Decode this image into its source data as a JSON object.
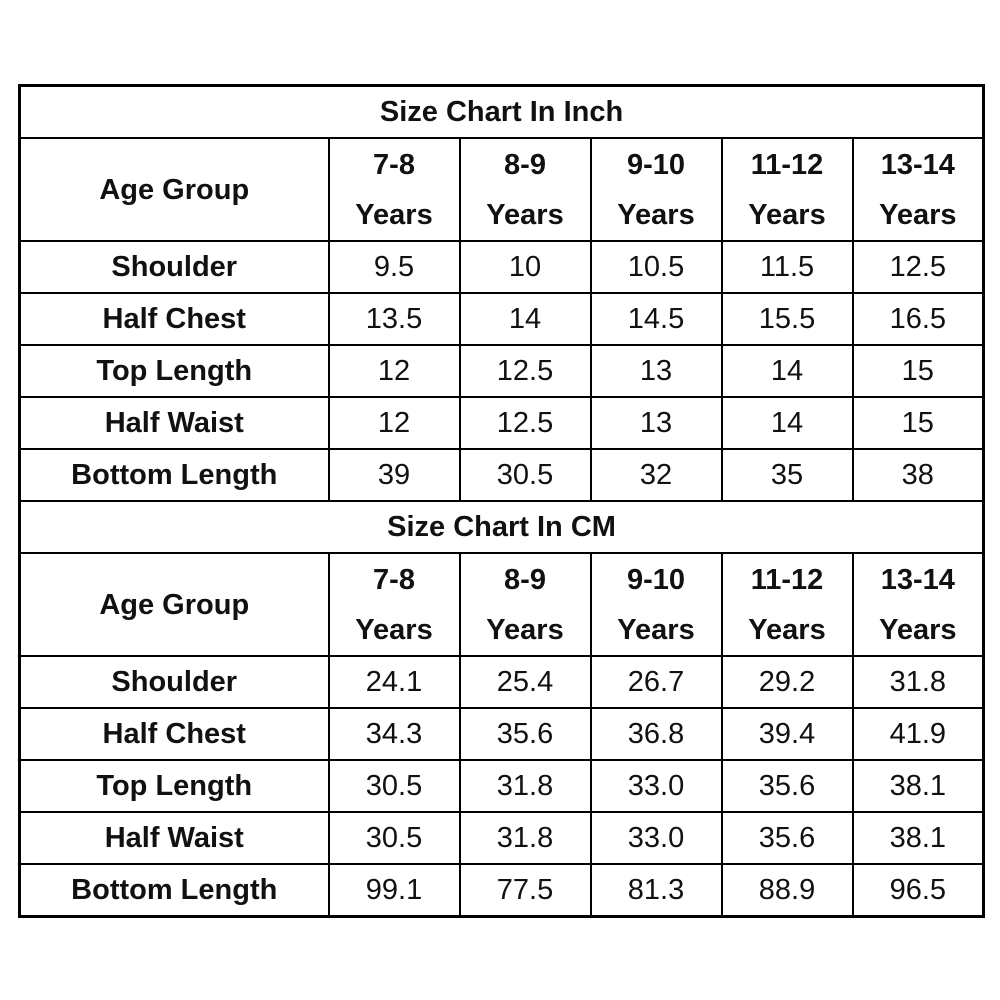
{
  "tables": [
    {
      "title": "Size Chart In Inch",
      "header": [
        "Age Group",
        "7-8 Years",
        "8-9 Years",
        "9-10 Years",
        "11-12 Years",
        "13-14 Years"
      ],
      "rows": [
        [
          "Shoulder",
          "9.5",
          "10",
          "10.5",
          "11.5",
          "12.5"
        ],
        [
          "Half Chest",
          "13.5",
          "14",
          "14.5",
          "15.5",
          "16.5"
        ],
        [
          "Top Length",
          "12",
          "12.5",
          "13",
          "14",
          "15"
        ],
        [
          "Half Waist",
          "12",
          "12.5",
          "13",
          "14",
          "15"
        ],
        [
          "Bottom Length",
          "39",
          "30.5",
          "32",
          "35",
          "38"
        ]
      ]
    },
    {
      "title": "Size Chart In CM",
      "header": [
        "Age Group",
        "7-8 Years",
        "8-9 Years",
        "9-10 Years",
        "11-12 Years",
        "13-14 Years"
      ],
      "rows": [
        [
          "Shoulder",
          "24.1",
          "25.4",
          "26.7",
          "29.2",
          "31.8"
        ],
        [
          "Half Chest",
          "34.3",
          "35.6",
          "36.8",
          "39.4",
          "41.9"
        ],
        [
          "Top Length",
          "30.5",
          "31.8",
          "33.0",
          "35.6",
          "38.1"
        ],
        [
          "Half Waist",
          "30.5",
          "31.8",
          "33.0",
          "35.6",
          "38.1"
        ],
        [
          "Bottom Length",
          "99.1",
          "77.5",
          "81.3",
          "88.9",
          "96.5"
        ]
      ]
    }
  ]
}
